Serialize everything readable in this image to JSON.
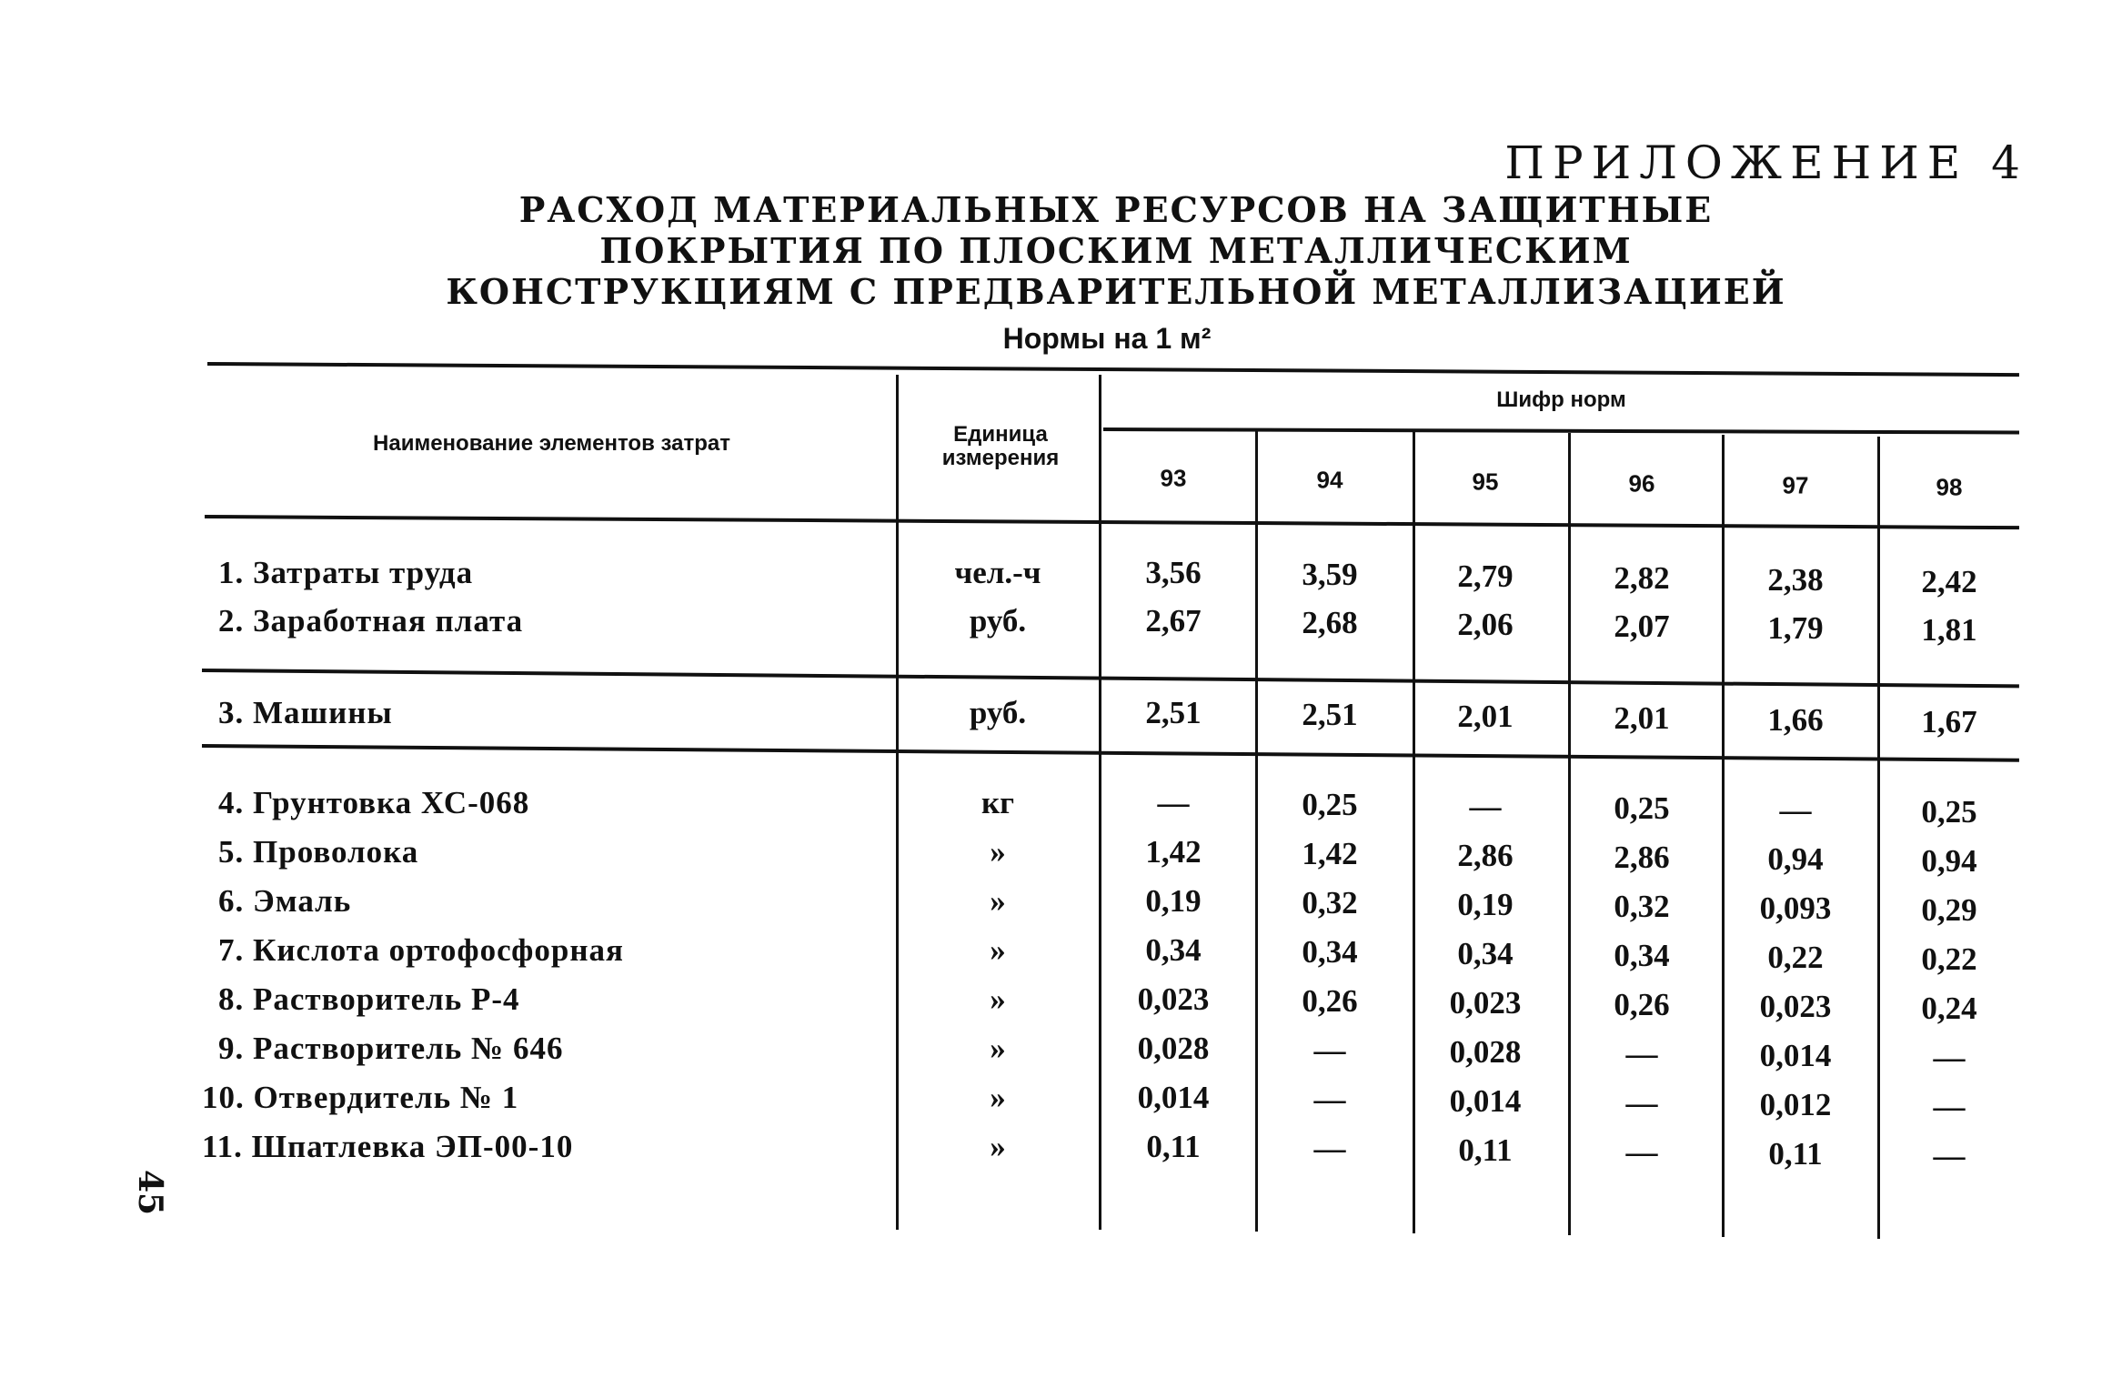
{
  "appendix": "ПРИЛОЖЕНИЕ 4",
  "title": [
    "РАСХОД МАТЕРИАЛЬНЫХ РЕСУРСОВ НА ЗАЩИТНЫЕ",
    "ПОКРЫТИЯ ПО ПЛОСКИМ МЕТАЛЛИЧЕСКИМ",
    "КОНСТРУКЦИЯМ С ПРЕДВАРИТЕЛЬНОЙ МЕТАЛЛИЗАЦИЕЙ"
  ],
  "subtitle": "Нормы на 1 м²",
  "table": {
    "header": {
      "name": "Наименование элементов затрат",
      "unit": "Единица измерения",
      "codes_group": "Шифр норм",
      "codes": [
        "93",
        "94",
        "95",
        "96",
        "97",
        "98"
      ]
    },
    "rows": [
      {
        "name": "1. Затраты труда",
        "unit": "чел.-ч",
        "values": [
          "3,56",
          "3,59",
          "2,79",
          "2,82",
          "2,38",
          "2,42"
        ]
      },
      {
        "name": "2. Заработная плата",
        "unit": "руб.",
        "values": [
          "2,67",
          "2,68",
          "2,06",
          "2,07",
          "1,79",
          "1,81"
        ]
      },
      {
        "name": "3. Машины",
        "unit": "руб.",
        "values": [
          "2,51",
          "2,51",
          "2,01",
          "2,01",
          "1,66",
          "1,67"
        ]
      },
      {
        "name": "4. Грунтовка ХС-068",
        "unit": "кг",
        "values": [
          "—",
          "0,25",
          "—",
          "0,25",
          "—",
          "0,25"
        ]
      },
      {
        "name": "5. Проволока",
        "unit": "»",
        "values": [
          "1,42",
          "1,42",
          "2,86",
          "2,86",
          "0,94",
          "0,94"
        ]
      },
      {
        "name": "6. Эмаль",
        "unit": "»",
        "values": [
          "0,19",
          "0,32",
          "0,19",
          "0,32",
          "0,093",
          "0,29"
        ]
      },
      {
        "name": "7. Кислота ортофосфорная",
        "unit": "»",
        "values": [
          "0,34",
          "0,34",
          "0,34",
          "0,34",
          "0,22",
          "0,22"
        ]
      },
      {
        "name": "8. Растворитель Р-4",
        "unit": "»",
        "values": [
          "0,023",
          "0,26",
          "0,023",
          "0,26",
          "0,023",
          "0,24"
        ]
      },
      {
        "name": "9. Растворитель № 646",
        "unit": "»",
        "values": [
          "0,028",
          "—",
          "0,028",
          "—",
          "0,014",
          "—"
        ]
      },
      {
        "name": "10. Отвердитель № 1",
        "unit": "»",
        "values": [
          "0,014",
          "—",
          "0,014",
          "—",
          "0,012",
          "—"
        ]
      },
      {
        "name": "11. Шпатлевка ЭП-00-10",
        "unit": "»",
        "values": [
          "0,11",
          "—",
          "0,11",
          "—",
          "0,11",
          "—"
        ]
      }
    ]
  },
  "page_number": "45"
}
